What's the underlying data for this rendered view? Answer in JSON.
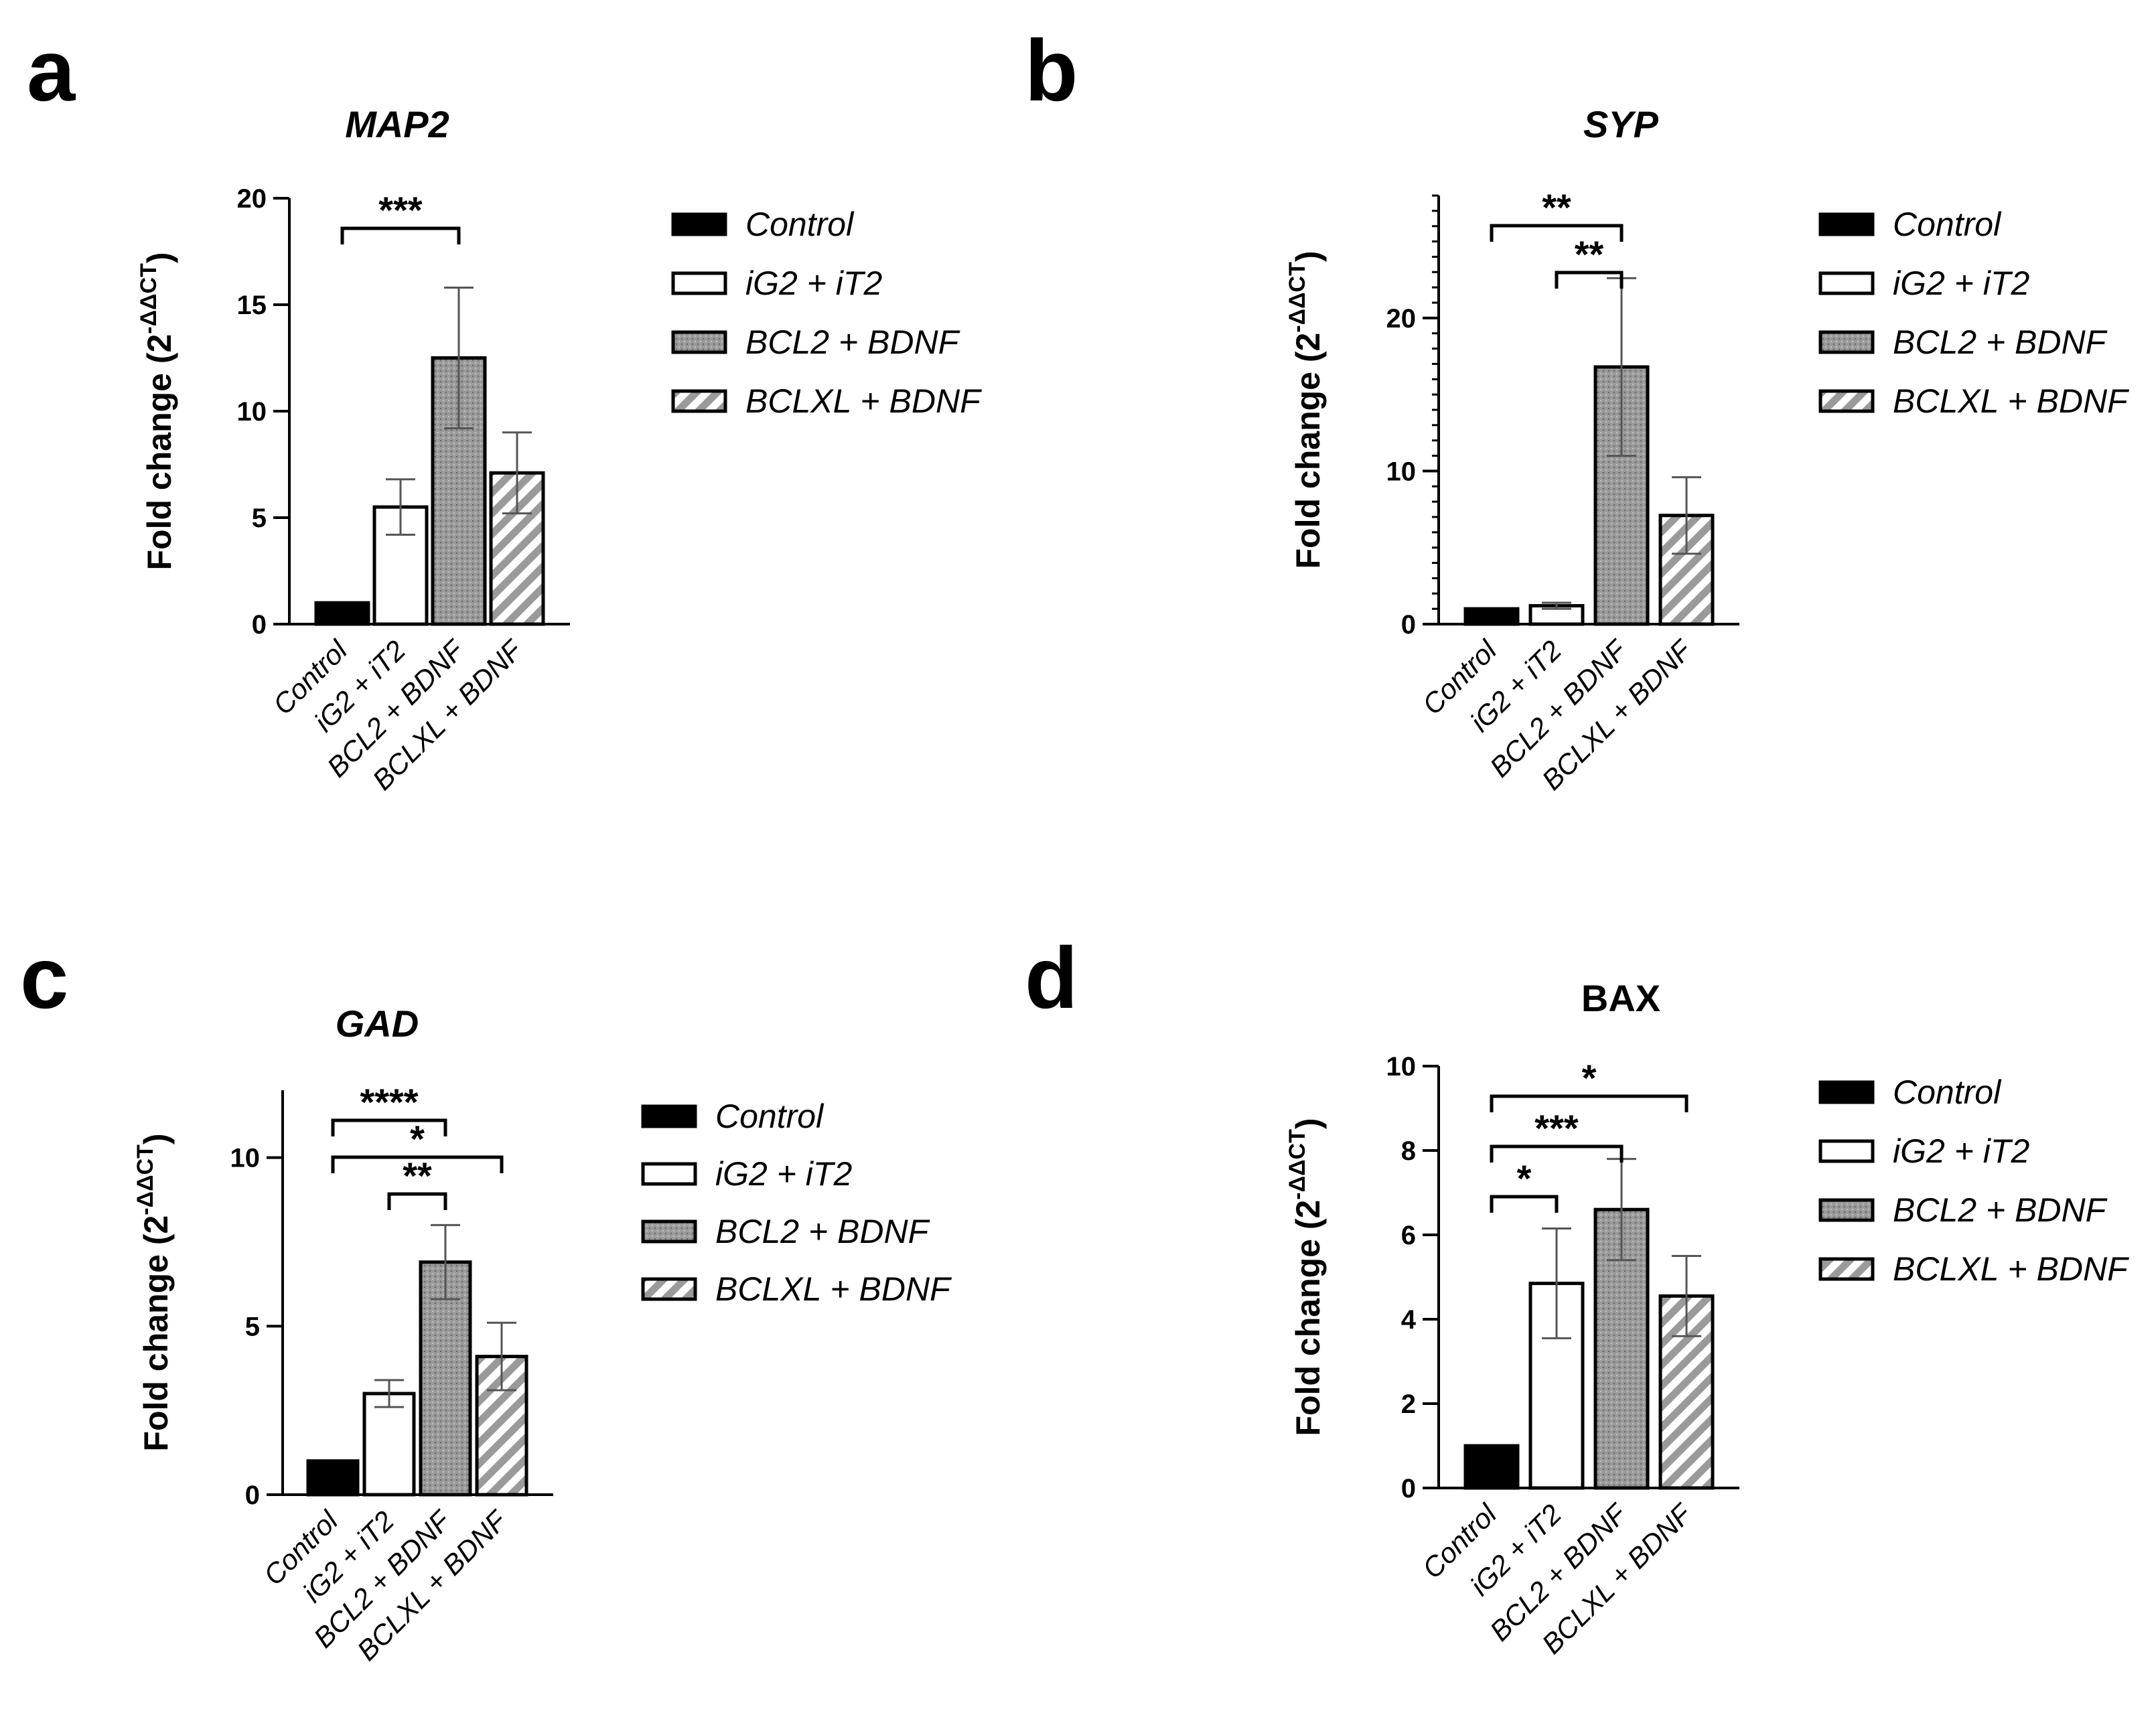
{
  "colors": {
    "ink": "#000000",
    "control": "#000000",
    "ig2_it2": "#ffffff",
    "bcl2_bdnf": "#9a9a9a",
    "bclxl_bdnf_stripe": "#9a9a9a",
    "error_bar": "#555555"
  },
  "legend_items": [
    "Control",
    "iG2 + iT2",
    "BCL2 + BDNF",
    "BCLXL + BDNF"
  ],
  "chart_data": [
    {
      "panel": "a",
      "type": "bar",
      "title": "MAP2",
      "title_italic": true,
      "ylabel": "Fold change (2",
      "ylabel_sup": "-ΔΔCT",
      "ylabel_close": ")",
      "categories": [
        "Control",
        "iG2 + iT2",
        "BCL2 + BDNF",
        "BCLXL + BDNF"
      ],
      "values": [
        1.0,
        5.5,
        12.5,
        7.1
      ],
      "errors": [
        0.0,
        1.3,
        3.3,
        1.9
      ],
      "ylim": [
        0,
        20
      ],
      "yticks": [
        0,
        5,
        10,
        15,
        20
      ],
      "minor_ticks": false,
      "significance": [
        {
          "from": 0,
          "to": 2,
          "label": "***",
          "level": 0
        }
      ]
    },
    {
      "panel": "b",
      "type": "bar",
      "title": "SYP",
      "title_italic": true,
      "ylabel": "Fold change (2",
      "ylabel_sup": "-ΔΔCT",
      "ylabel_close": ")",
      "categories": [
        "Control",
        "iG2 + iT2",
        "BCL2 + BDNF",
        "BCLXL + BDNF"
      ],
      "values": [
        1.0,
        1.2,
        16.8,
        7.1
      ],
      "errors": [
        0.0,
        0.2,
        5.8,
        2.5
      ],
      "ylim": [
        0,
        28
      ],
      "yticks": [
        0,
        10,
        20
      ],
      "minor_ticks": true,
      "significance": [
        {
          "from": 0,
          "to": 2,
          "label": "**",
          "level": 1
        },
        {
          "from": 1,
          "to": 2,
          "label": "**",
          "level": 0
        }
      ]
    },
    {
      "panel": "c",
      "type": "bar",
      "title": "GAD",
      "title_italic": true,
      "ylabel": "Fold change (2",
      "ylabel_sup": "-ΔΔCT",
      "ylabel_close": ")",
      "categories": [
        "Control",
        "iG2 + iT2",
        "BCL2 + BDNF",
        "BCLXL + BDNF"
      ],
      "values": [
        1.0,
        3.0,
        6.9,
        4.1
      ],
      "errors": [
        0.0,
        0.4,
        1.1,
        1.0
      ],
      "ylim": [
        0,
        12
      ],
      "yticks": [
        0,
        5,
        10
      ],
      "minor_ticks": false,
      "significance": [
        {
          "from": 0,
          "to": 2,
          "label": "****",
          "level": 2
        },
        {
          "from": 0,
          "to": 3,
          "label": "*",
          "level": 1
        },
        {
          "from": 1,
          "to": 2,
          "label": "**",
          "level": 0
        }
      ]
    },
    {
      "panel": "d",
      "type": "bar",
      "title": "BAX",
      "title_italic": false,
      "ylabel": "Fold change (2",
      "ylabel_sup": "-ΔΔCT",
      "ylabel_close": ")",
      "categories": [
        "Control",
        "iG2 + iT2",
        "BCL2 + BDNF",
        "BCLXL + BDNF"
      ],
      "values": [
        1.0,
        4.85,
        6.6,
        4.55
      ],
      "errors": [
        0.0,
        1.3,
        1.2,
        0.95
      ],
      "ylim": [
        0,
        10
      ],
      "yticks": [
        0,
        2,
        4,
        6,
        8,
        10
      ],
      "minor_ticks": false,
      "significance": [
        {
          "from": 0,
          "to": 3,
          "label": "*",
          "level": 2
        },
        {
          "from": 0,
          "to": 2,
          "label": "***",
          "level": 1
        },
        {
          "from": 0,
          "to": 1,
          "label": "*",
          "level": 0
        }
      ]
    }
  ]
}
